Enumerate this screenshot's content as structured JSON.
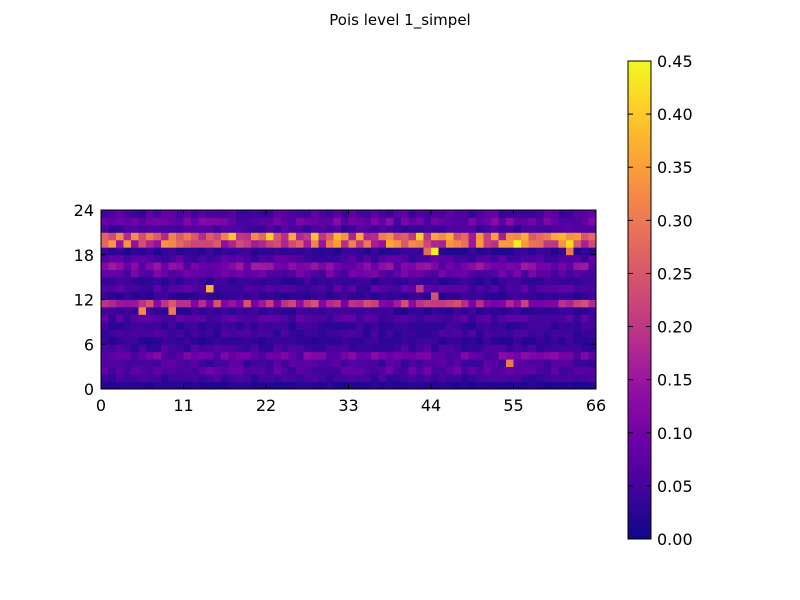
{
  "chart_data": {
    "type": "heatmap",
    "title": "Pois level 1_simpel",
    "xlabel": "",
    "ylabel": "",
    "xlim": [
      0,
      66
    ],
    "ylim": [
      0,
      24
    ],
    "x_ticks": [
      "0",
      "11",
      "22",
      "33",
      "44",
      "55",
      "66"
    ],
    "y_ticks": [
      "0",
      "6",
      "12",
      "18",
      "24"
    ],
    "n_cols": 66,
    "n_rows": 24,
    "colormap": "plasma",
    "colorbar": {
      "min": 0.0,
      "max": 0.45,
      "ticks": [
        "0.00",
        "0.05",
        "0.10",
        "0.15",
        "0.20",
        "0.25",
        "0.30",
        "0.35",
        "0.40",
        "0.45"
      ]
    },
    "row_profile": [
      0.02,
      0.045,
      0.07,
      0.055,
      0.09,
      0.05,
      0.03,
      0.045,
      0.035,
      0.06,
      0.035,
      0.18,
      0.03,
      0.06,
      0.035,
      0.08,
      0.11,
      0.06,
      0.03,
      0.24,
      0.28,
      0.05,
      0.09,
      0.06
    ],
    "highlights": [
      {
        "col": 14,
        "row": 13,
        "value": 0.37
      },
      {
        "col": 5,
        "row": 10,
        "value": 0.32
      },
      {
        "col": 9,
        "row": 10,
        "value": 0.3
      },
      {
        "col": 44,
        "row": 18,
        "value": 0.44
      },
      {
        "col": 55,
        "row": 19,
        "value": 0.44
      },
      {
        "col": 62,
        "row": 19,
        "value": 0.42
      },
      {
        "col": 38,
        "row": 19,
        "value": 0.36
      },
      {
        "col": 54,
        "row": 3,
        "value": 0.3
      },
      {
        "col": 43,
        "row": 18,
        "value": 0.28
      },
      {
        "col": 1,
        "row": 19,
        "value": 0.34
      },
      {
        "col": 44,
        "row": 12,
        "value": 0.24
      },
      {
        "col": 42,
        "row": 13,
        "value": 0.2
      },
      {
        "col": 30,
        "row": 19,
        "value": 0.3
      },
      {
        "col": 62,
        "row": 18,
        "value": 0.3
      }
    ]
  }
}
